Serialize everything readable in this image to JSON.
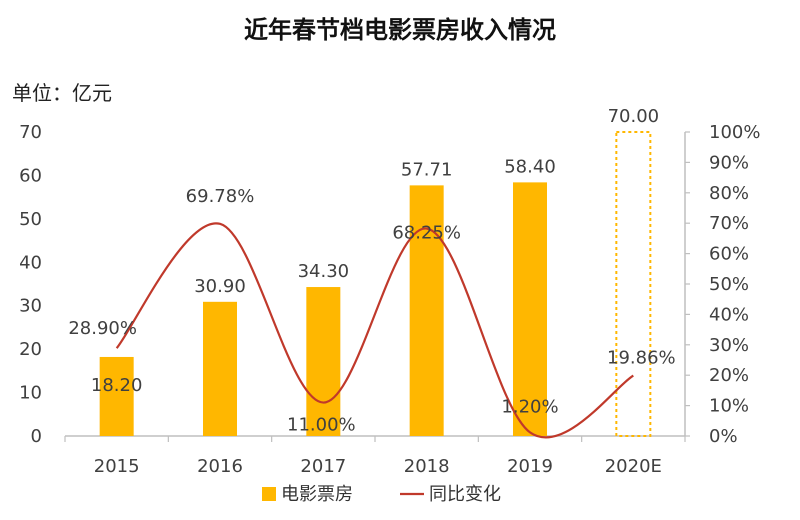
{
  "chart_data": {
    "type": "bar",
    "title": "近年春节档电影票房收入情况",
    "unit_label": "单位：亿元",
    "categories": [
      "2015",
      "2016",
      "2017",
      "2018",
      "2019",
      "2020E"
    ],
    "series": [
      {
        "name": "电影票房",
        "type": "bar",
        "axis": "left",
        "values": [
          18.2,
          30.9,
          34.3,
          57.71,
          58.4,
          70.0
        ],
        "labels": [
          "18.20",
          "30.90",
          "34.30",
          "57.71",
          "58.40",
          "70.00"
        ],
        "estimated": [
          false,
          false,
          false,
          false,
          false,
          true
        ]
      },
      {
        "name": "同比变化",
        "type": "line",
        "axis": "right",
        "values": [
          28.9,
          69.78,
          11.0,
          68.25,
          1.2,
          19.86
        ],
        "labels": [
          "28.90%",
          "69.78%",
          "11.00%",
          "68.25%",
          "1.20%",
          "19.86%"
        ]
      }
    ],
    "y_left": {
      "min": 0,
      "max": 70,
      "ticks": [
        "0",
        "10",
        "20",
        "30",
        "40",
        "50",
        "60",
        "70"
      ]
    },
    "y_right": {
      "min": 0,
      "max": 100,
      "ticks": [
        "0%",
        "10%",
        "20%",
        "30%",
        "40%",
        "50%",
        "60%",
        "70%",
        "80%",
        "90%",
        "100%"
      ]
    },
    "grid": false,
    "legend_position": "bottom",
    "colors": {
      "bar": "#FFB700",
      "line": "#C0392B",
      "axis": "#BFBFBF"
    }
  }
}
